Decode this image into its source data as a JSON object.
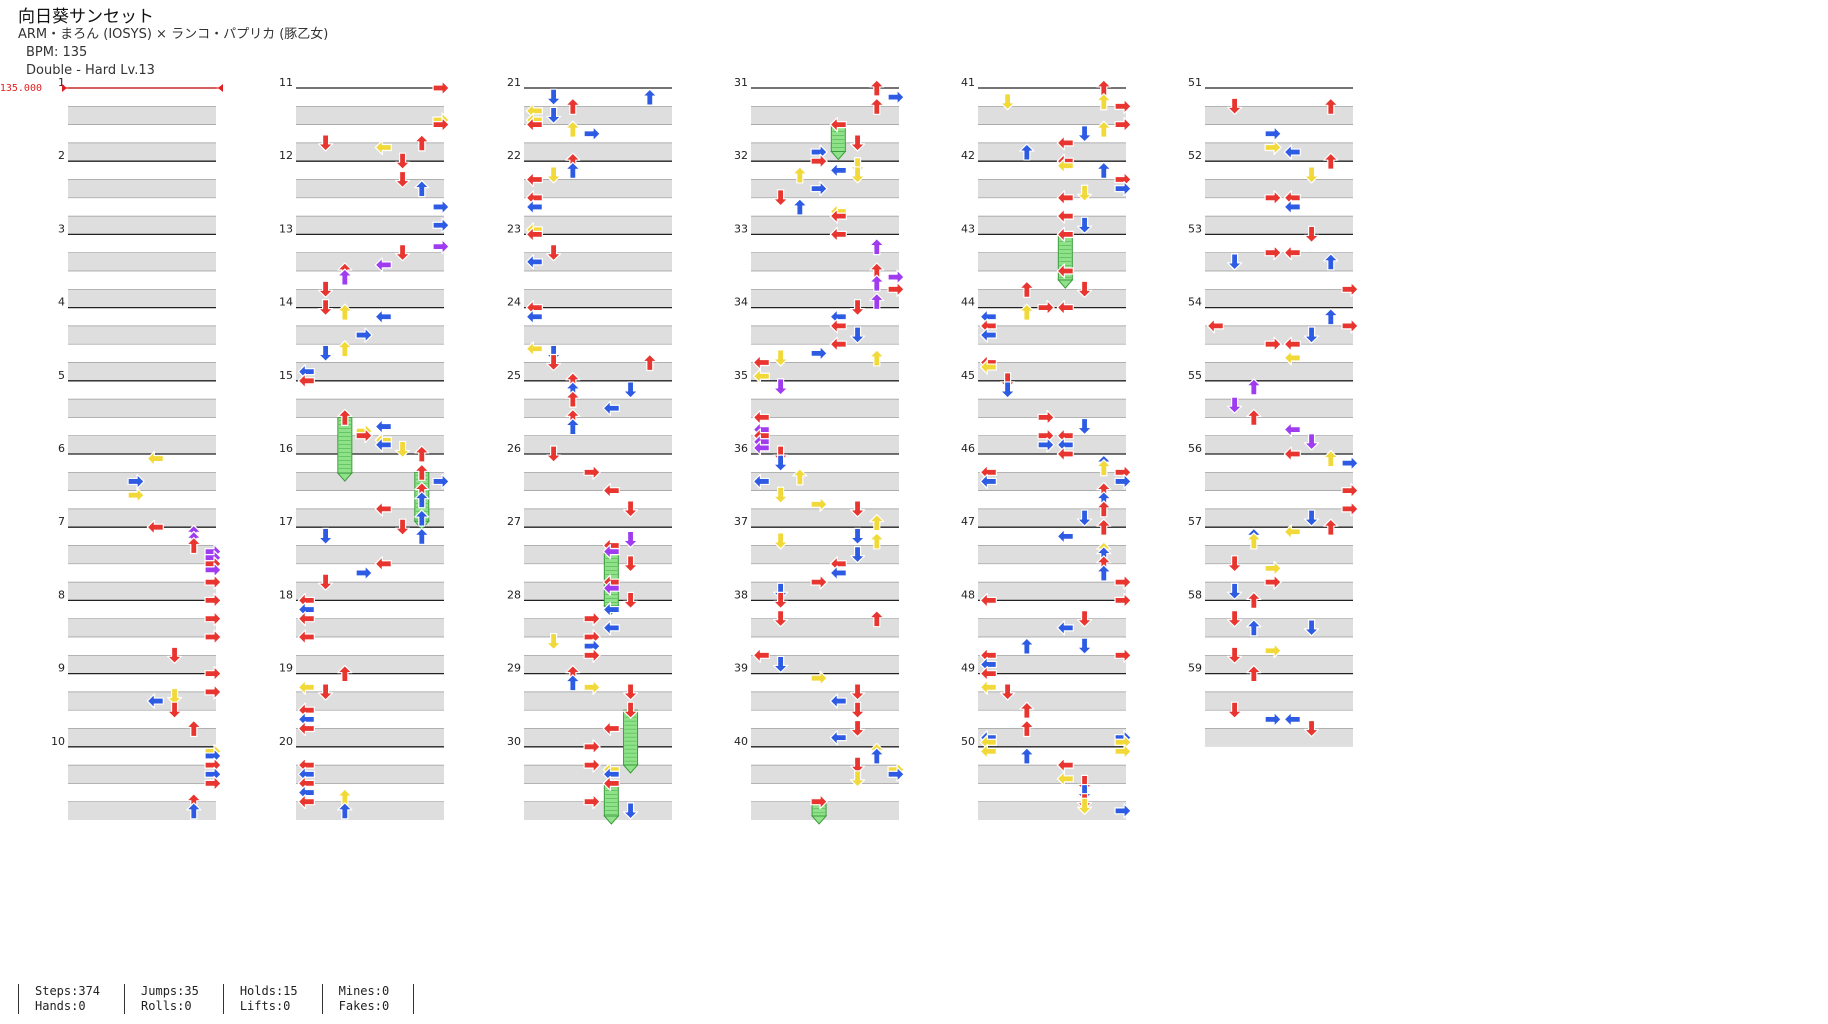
{
  "song": {
    "title": "向日葵サンセット",
    "artist": "ARM・まろん (IOSYS) × ランコ・パプリカ (豚乙女)",
    "bpm": "BPM: 135",
    "difficulty": "Double - Hard  Lv.13"
  },
  "chart_data": {
    "type": "step-chart",
    "style": "Double",
    "difficulty": "Hard",
    "level": 13,
    "measure_count": 59,
    "bpm_marker": "135.000",
    "columns_per_row": 10,
    "measures_per_column": 10,
    "lane_colors": {
      "left": "#e8352f",
      "down": "#2d5be3",
      "up": "#e8352f",
      "right": "#2d5be3"
    },
    "beat_colors": {
      "quarter": "#e8352f",
      "eighth": "#2d5be3",
      "sixteenth": "#f2d93a",
      "twentyfourth": "#a03cf0",
      "hold_body": "#8fe28a"
    }
  },
  "stats": {
    "steps": "Steps:374",
    "hands": "Hands:0",
    "jumps": "Jumps:35",
    "rolls": "Rolls:0",
    "holds": "Holds:15",
    "lifts": "Lifts:0",
    "mines": "Mines:0",
    "fakes": "Fakes:0"
  }
}
